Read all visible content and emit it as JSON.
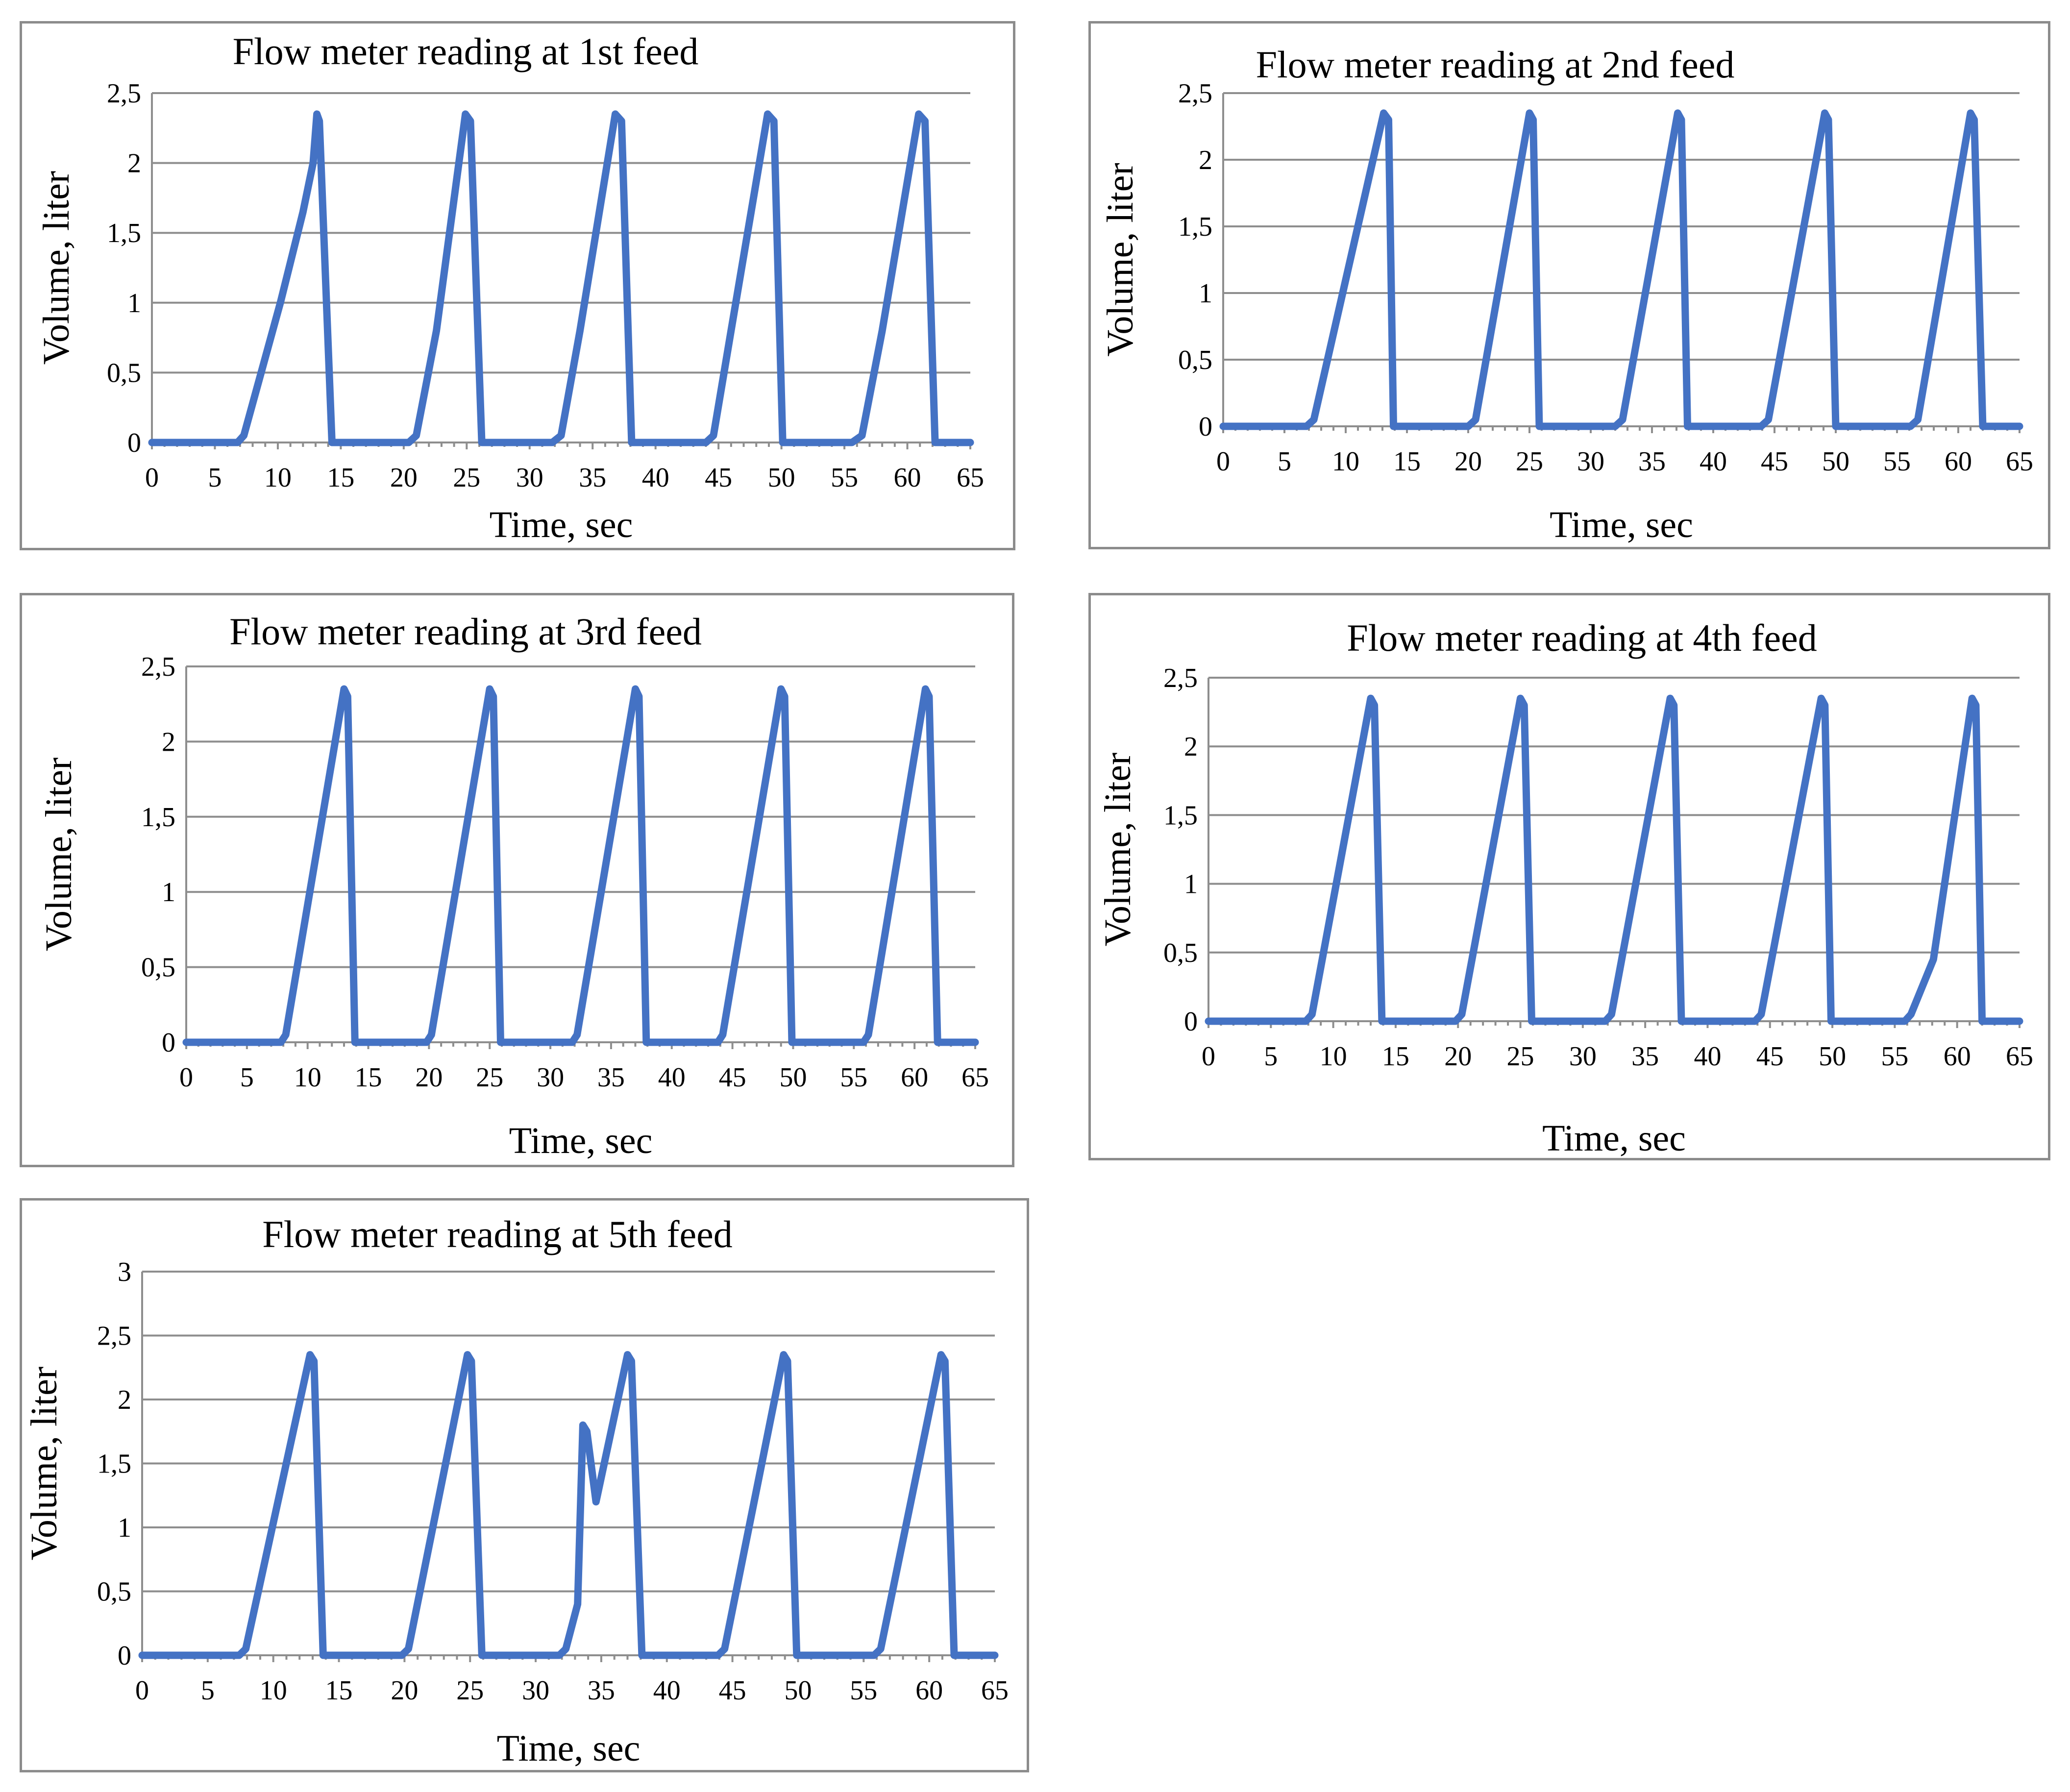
{
  "series_color": "#4472c4",
  "chart_data": [
    {
      "type": "line",
      "title": "Flow meter reading at 1st feed",
      "xlabel": "Time, sec",
      "ylabel": "Volume, liter",
      "xlim": [
        0,
        65
      ],
      "ylim": [
        0,
        2.5
      ],
      "xticks": [
        "0",
        "5",
        "10",
        "15",
        "20",
        "25",
        "30",
        "35",
        "40",
        "45",
        "50",
        "55",
        "60",
        "65"
      ],
      "yticks": [
        "0",
        "0,5",
        "1",
        "1,5",
        "2",
        "2,5"
      ],
      "x": [
        0,
        6.8,
        7.3,
        10.2,
        12,
        12.8,
        13.1,
        13.3,
        14.3,
        20.4,
        21,
        22.6,
        24.9,
        25.3,
        26.2,
        31.8,
        32.5,
        34,
        36.8,
        37.3,
        38.1,
        44,
        44.6,
        46,
        48.9,
        49.4,
        50.1,
        55.6,
        56.4,
        58,
        60.9,
        61.4,
        62.2,
        65
      ],
      "values": [
        0,
        0,
        0.05,
        1.0,
        1.65,
        2.0,
        2.35,
        2.3,
        0,
        0,
        0.05,
        0.8,
        2.35,
        2.3,
        0,
        0,
        0.05,
        0.8,
        2.35,
        2.3,
        0,
        0,
        0.05,
        0.8,
        2.35,
        2.3,
        0,
        0,
        0.05,
        0.8,
        2.35,
        2.3,
        0,
        0
      ]
    },
    {
      "type": "line",
      "title": "Flow meter reading at 2nd feed",
      "xlabel": "Time, sec",
      "ylabel": "Volume, liter",
      "xlim": [
        0,
        65
      ],
      "ylim": [
        0,
        2.5
      ],
      "xticks": [
        "0",
        "5",
        "10",
        "15",
        "20",
        "25",
        "30",
        "35",
        "40",
        "45",
        "50",
        "55",
        "60",
        "65"
      ],
      "yticks": [
        "0",
        "0,5",
        "1",
        "1,5",
        "2",
        "2,5"
      ],
      "x": [
        0,
        6.8,
        7.4,
        13.1,
        13.5,
        13.9,
        20,
        20.6,
        25,
        25.3,
        25.8,
        32,
        32.6,
        37.1,
        37.4,
        37.9,
        43.9,
        44.5,
        49.1,
        49.4,
        50,
        56.1,
        56.7,
        61,
        61.3,
        62,
        65
      ],
      "values": [
        0,
        0,
        0.05,
        2.35,
        2.3,
        0,
        0,
        0.05,
        2.35,
        2.3,
        0,
        0,
        0.05,
        2.35,
        2.3,
        0,
        0,
        0.05,
        2.35,
        2.3,
        0,
        0,
        0.05,
        2.35,
        2.3,
        0,
        0
      ]
    },
    {
      "type": "line",
      "title": "Flow meter reading at 3rd feed",
      "xlabel": "Time, sec",
      "ylabel": "Volume, liter",
      "xlim": [
        0,
        65
      ],
      "ylim": [
        0,
        2.5
      ],
      "xticks": [
        "0",
        "5",
        "10",
        "15",
        "20",
        "25",
        "30",
        "35",
        "40",
        "45",
        "50",
        "55",
        "60",
        "65"
      ],
      "yticks": [
        "0",
        "0,5",
        "1",
        "1,5",
        "2",
        "2,5"
      ],
      "x": [
        0,
        7.8,
        8.2,
        13,
        13.3,
        13.9,
        19.8,
        20.2,
        25,
        25.3,
        25.9,
        31.8,
        32.2,
        37,
        37.3,
        37.9,
        43.8,
        44.2,
        49,
        49.3,
        49.9,
        55.8,
        56.2,
        60.9,
        61.2,
        61.9,
        65
      ],
      "values": [
        0,
        0,
        0.05,
        2.35,
        2.3,
        0,
        0,
        0.05,
        2.35,
        2.3,
        0,
        0,
        0.05,
        2.35,
        2.3,
        0,
        0,
        0.05,
        2.35,
        2.3,
        0,
        0,
        0.05,
        2.35,
        2.3,
        0,
        0
      ]
    },
    {
      "type": "line",
      "title": "Flow meter reading at 4th feed",
      "xlabel": "Time, sec",
      "ylabel": "Volume, liter",
      "xlim": [
        0,
        65
      ],
      "ylim": [
        0,
        2.5
      ],
      "xticks": [
        "0",
        "5",
        "10",
        "15",
        "20",
        "25",
        "30",
        "35",
        "40",
        "45",
        "50",
        "55",
        "60",
        "65"
      ],
      "yticks": [
        "0",
        "0,5",
        "1",
        "1,5",
        "2",
        "2,5"
      ],
      "x": [
        0,
        7.8,
        8.3,
        13,
        13.3,
        13.9,
        19.8,
        20.3,
        25,
        25.3,
        25.9,
        31.8,
        32.3,
        37,
        37.3,
        37.9,
        43.8,
        44.3,
        49.1,
        49.4,
        49.9,
        55.8,
        56.3,
        58.1,
        61.2,
        61.5,
        62,
        65
      ],
      "values": [
        0,
        0,
        0.05,
        2.35,
        2.3,
        0,
        0,
        0.05,
        2.35,
        2.3,
        0,
        0,
        0.05,
        2.35,
        2.3,
        0,
        0,
        0.05,
        2.35,
        2.3,
        0,
        0,
        0.05,
        0.45,
        2.35,
        2.3,
        0,
        0
      ]
    },
    {
      "type": "line",
      "title": "Flow meter reading at 5th feed",
      "xlabel": "Time, sec",
      "ylabel": "Volume, liter",
      "xlim": [
        0,
        65
      ],
      "ylim": [
        0,
        3
      ],
      "xticks": [
        "0",
        "5",
        "10",
        "15",
        "20",
        "25",
        "30",
        "35",
        "40",
        "45",
        "50",
        "55",
        "60",
        "65"
      ],
      "yticks": [
        "0",
        "0,5",
        "1",
        "1,5",
        "2",
        "2,5",
        "3"
      ],
      "x": [
        0,
        7.4,
        7.9,
        12.8,
        13.1,
        13.8,
        19.8,
        20.3,
        24.8,
        25.1,
        25.9,
        31.8,
        32.3,
        33.2,
        33.6,
        33.9,
        34.6,
        37,
        37.3,
        38.1,
        43.9,
        44.4,
        48.9,
        49.2,
        49.9,
        55.8,
        56.3,
        60.9,
        61.2,
        61.9,
        65
      ],
      "values": [
        0,
        0,
        0.05,
        2.35,
        2.3,
        0,
        0,
        0.05,
        2.35,
        2.3,
        0,
        0,
        0.05,
        0.4,
        1.8,
        1.75,
        1.2,
        2.35,
        2.3,
        0,
        0,
        0.05,
        2.35,
        2.3,
        0,
        0,
        0.05,
        2.35,
        2.3,
        0,
        0
      ]
    }
  ]
}
